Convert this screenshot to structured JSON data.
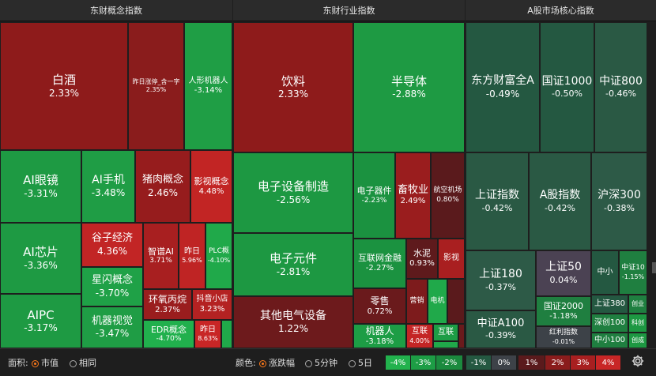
{
  "sections": {
    "concept": "东财概念指数",
    "industry": "东财行业指数",
    "core": "A股市场核心指数"
  },
  "tiles": {
    "t01": {
      "name": "白酒",
      "value": "2.33%"
    },
    "t02": {
      "name": "昨日涨停_含一字",
      "value": "2.35%"
    },
    "t03": {
      "name": "人形机器人",
      "value": "-3.14%"
    },
    "t04": {
      "name": "AI眼镜",
      "value": "-3.31%"
    },
    "t05": {
      "name": "AI手机",
      "value": "-3.48%"
    },
    "t06": {
      "name": "猪肉概念",
      "value": "2.46%"
    },
    "t07": {
      "name": "影视概念",
      "value": "4.48%"
    },
    "t08": {
      "name": "AI芯片",
      "value": "-3.36%"
    },
    "t09": {
      "name": "谷子经济",
      "value": "4.36%"
    },
    "t10": {
      "name": "星闪概念",
      "value": "-3.70%"
    },
    "t11": {
      "name": "智谱AI",
      "value": "3.71%"
    },
    "t12": {
      "name": "昨日",
      "value": "5.96%"
    },
    "t13": {
      "name": "PLC概",
      "value": "-4.10%"
    },
    "t14": {
      "name": "AIPC",
      "value": "-3.17%"
    },
    "t15": {
      "name": "机器视觉",
      "value": "-3.47%"
    },
    "t16": {
      "name": "环氧丙烷",
      "value": "2.37%"
    },
    "t17": {
      "name": "抖音小店",
      "value": "3.23%"
    },
    "t18": {
      "name": "EDR概念",
      "value": "-4.70%"
    },
    "t19": {
      "name": "昨日",
      "value": "8.63%"
    },
    "t20": {
      "name": "饮料",
      "value": "2.33%"
    },
    "t21": {
      "name": "半导体",
      "value": "-2.88%"
    },
    "t22": {
      "name": "电子设备制造",
      "value": "-2.56%"
    },
    "t23": {
      "name": "电子器件",
      "value": "-2.23%"
    },
    "t24": {
      "name": "畜牧业",
      "value": "2.49%"
    },
    "t25": {
      "name": "航空机场",
      "value": "0.80%"
    },
    "t26": {
      "name": "电子元件",
      "value": "-2.81%"
    },
    "t27": {
      "name": "互联网金融",
      "value": "-2.27%"
    },
    "t28": {
      "name": "水泥",
      "value": "0.93%"
    },
    "t29": {
      "name": "影视",
      "value": ""
    },
    "t30": {
      "name": "零售",
      "value": "0.72%"
    },
    "t31": {
      "name": "营销",
      "value": ""
    },
    "t32": {
      "name": "电机",
      "value": ""
    },
    "t33": {
      "name": "其他电气设备",
      "value": "1.22%"
    },
    "t34": {
      "name": "机器人",
      "value": "-3.18%"
    },
    "t35": {
      "name": "互联",
      "value": "4.00%"
    },
    "t36": {
      "name": "互联",
      "value": ""
    },
    "t37": {
      "name": "东方财富全A",
      "value": "-0.49%"
    },
    "t38": {
      "name": "国证1000",
      "value": "-0.50%"
    },
    "t39": {
      "name": "中证800",
      "value": "-0.46%"
    },
    "t40": {
      "name": "上证指数",
      "value": "-0.42%"
    },
    "t41": {
      "name": "A股指数",
      "value": "-0.42%"
    },
    "t42": {
      "name": "沪深300",
      "value": "-0.38%"
    },
    "t43": {
      "name": "上证180",
      "value": "-0.37%"
    },
    "t44": {
      "name": "上证50",
      "value": "0.04%"
    },
    "t45": {
      "name": "中小",
      "value": ""
    },
    "t46": {
      "name": "中证10",
      "value": "-1.15%"
    },
    "t47": {
      "name": "中证A100",
      "value": "-0.39%"
    },
    "t48": {
      "name": "国证2000",
      "value": "-1.18%"
    },
    "t49": {
      "name": "红利指数",
      "value": "-0.01%"
    },
    "t50": {
      "name": "上证380",
      "value": ""
    },
    "t51": {
      "name": "创业",
      "value": ""
    },
    "t52": {
      "name": "深创100",
      "value": ""
    },
    "t53": {
      "name": "科创",
      "value": ""
    },
    "t54": {
      "name": "中小100",
      "value": ""
    },
    "t55": {
      "name": "创成",
      "value": ""
    }
  },
  "bottom": {
    "area_label": "面积:",
    "area_opt1": "市值",
    "area_opt2": "相同",
    "color_label": "颜色:",
    "color_opt1": "涨跌幅",
    "color_opt2": "5分钟",
    "color_opt3": "5日",
    "legend": [
      "-4%",
      "-3%",
      "-2%",
      "-1%",
      "0%",
      "1%",
      "2%",
      "3%",
      "4%"
    ]
  },
  "icons": {
    "settings": "gear-icon"
  },
  "colors": {
    "up": "#b5201f",
    "down": "#1f9a44",
    "flat": "#3a3f46",
    "accent": "#ff7a1a"
  }
}
